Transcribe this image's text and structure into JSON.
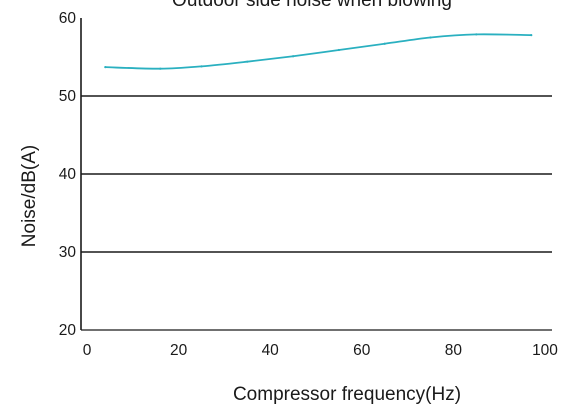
{
  "chart_data": {
    "type": "line",
    "title": "Outdoor side noise when blowing",
    "xlabel": "Compressor frequency(Hz)",
    "ylabel": "Noise/dB(A)",
    "xlim": [
      0,
      100
    ],
    "ylim": [
      20,
      60
    ],
    "x_ticks": [
      "0",
      "20",
      "40",
      "60",
      "80",
      "100"
    ],
    "y_ticks": [
      "20",
      "30",
      "40",
      "50",
      "60"
    ],
    "grid": "horizontal",
    "legend": "none",
    "series": [
      {
        "color": "#2ab0c0",
        "points": [
          [
            4,
            53.7
          ],
          [
            16,
            53.5
          ],
          [
            25,
            53.8
          ],
          [
            35,
            54.4
          ],
          [
            45,
            55.1
          ],
          [
            55,
            55.9
          ],
          [
            65,
            56.7
          ],
          [
            75,
            57.5
          ],
          [
            85,
            57.9
          ],
          [
            97,
            57.8
          ]
        ]
      }
    ]
  }
}
